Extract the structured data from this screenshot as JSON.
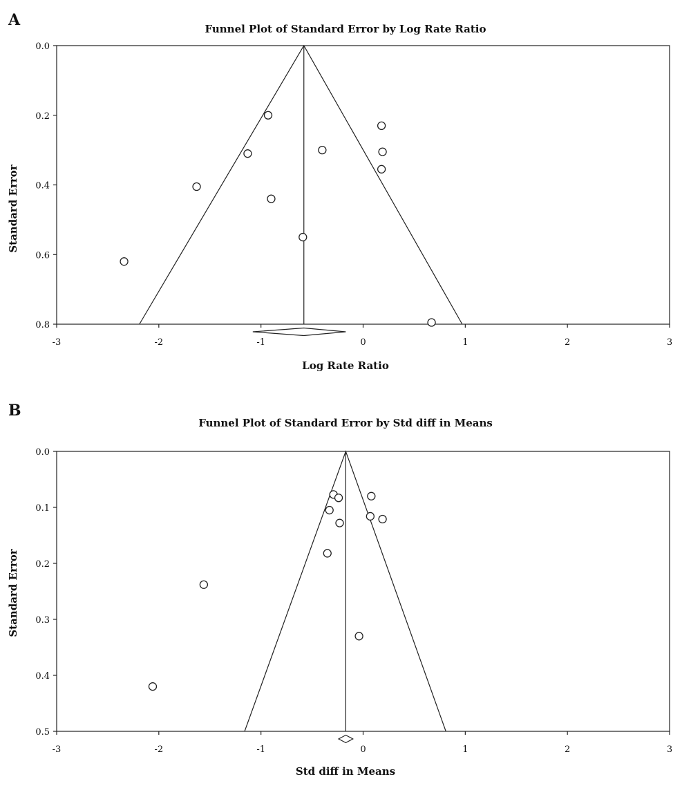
{
  "chart_data": [
    {
      "panel_label": "A",
      "type": "scatter",
      "title": "Funnel Plot of Standard Error by Log Rate Ratio",
      "xlabel": "Log Rate Ratio",
      "ylabel": "Standard Error",
      "xlim": [
        -3,
        3
      ],
      "ylim": [
        0.0,
        0.8
      ],
      "y_inverted": true,
      "xticks": [
        -3,
        -2,
        -1,
        0,
        1,
        2,
        3
      ],
      "yticks": [
        0.0,
        0.2,
        0.4,
        0.6,
        0.8
      ],
      "ytick_labels": [
        "0.0",
        "0.2",
        "0.4",
        "0.6",
        "0.8"
      ],
      "grid": false,
      "summary_effect": -0.58,
      "summary_ci": [
        -1.08,
        -0.17
      ],
      "funnel_apex_se": 0.0,
      "funnel_base": {
        "se": 0.8,
        "left": -2.19,
        "right": 0.97
      },
      "points": [
        {
          "x": -0.93,
          "y": 0.2
        },
        {
          "x": 0.18,
          "y": 0.23
        },
        {
          "x": -0.4,
          "y": 0.3
        },
        {
          "x": 0.19,
          "y": 0.305
        },
        {
          "x": -1.13,
          "y": 0.31
        },
        {
          "x": 0.18,
          "y": 0.355
        },
        {
          "x": -1.63,
          "y": 0.405
        },
        {
          "x": -0.9,
          "y": 0.44
        },
        {
          "x": -0.59,
          "y": 0.55
        },
        {
          "x": -2.34,
          "y": 0.62
        },
        {
          "x": 0.67,
          "y": 0.795
        }
      ]
    },
    {
      "panel_label": "B",
      "type": "scatter",
      "title": "Funnel Plot of Standard Error by Std diff in Means",
      "xlabel": "Std diff in Means",
      "ylabel": "Standard Error",
      "xlim": [
        -3,
        3
      ],
      "ylim": [
        0.0,
        0.5
      ],
      "y_inverted": true,
      "xticks": [
        -3,
        -2,
        -1,
        0,
        1,
        2,
        3
      ],
      "yticks": [
        0.0,
        0.1,
        0.2,
        0.3,
        0.4,
        0.5
      ],
      "ytick_labels": [
        "0.0",
        "0.1",
        "0.2",
        "0.3",
        "0.4",
        "0.5"
      ],
      "grid": false,
      "summary_effect": -0.17,
      "summary_ci": [
        -0.24,
        -0.1
      ],
      "funnel_apex_se": 0.0,
      "funnel_base": {
        "se": 0.5,
        "left": -1.16,
        "right": 0.81
      },
      "points": [
        {
          "x": -0.29,
          "y": 0.077
        },
        {
          "x": -0.24,
          "y": 0.083
        },
        {
          "x": 0.08,
          "y": 0.08
        },
        {
          "x": -0.33,
          "y": 0.105
        },
        {
          "x": 0.07,
          "y": 0.116
        },
        {
          "x": 0.19,
          "y": 0.121
        },
        {
          "x": -0.23,
          "y": 0.128
        },
        {
          "x": -0.35,
          "y": 0.182
        },
        {
          "x": -1.56,
          "y": 0.238
        },
        {
          "x": -0.04,
          "y": 0.33
        },
        {
          "x": -2.06,
          "y": 0.42
        }
      ]
    }
  ]
}
